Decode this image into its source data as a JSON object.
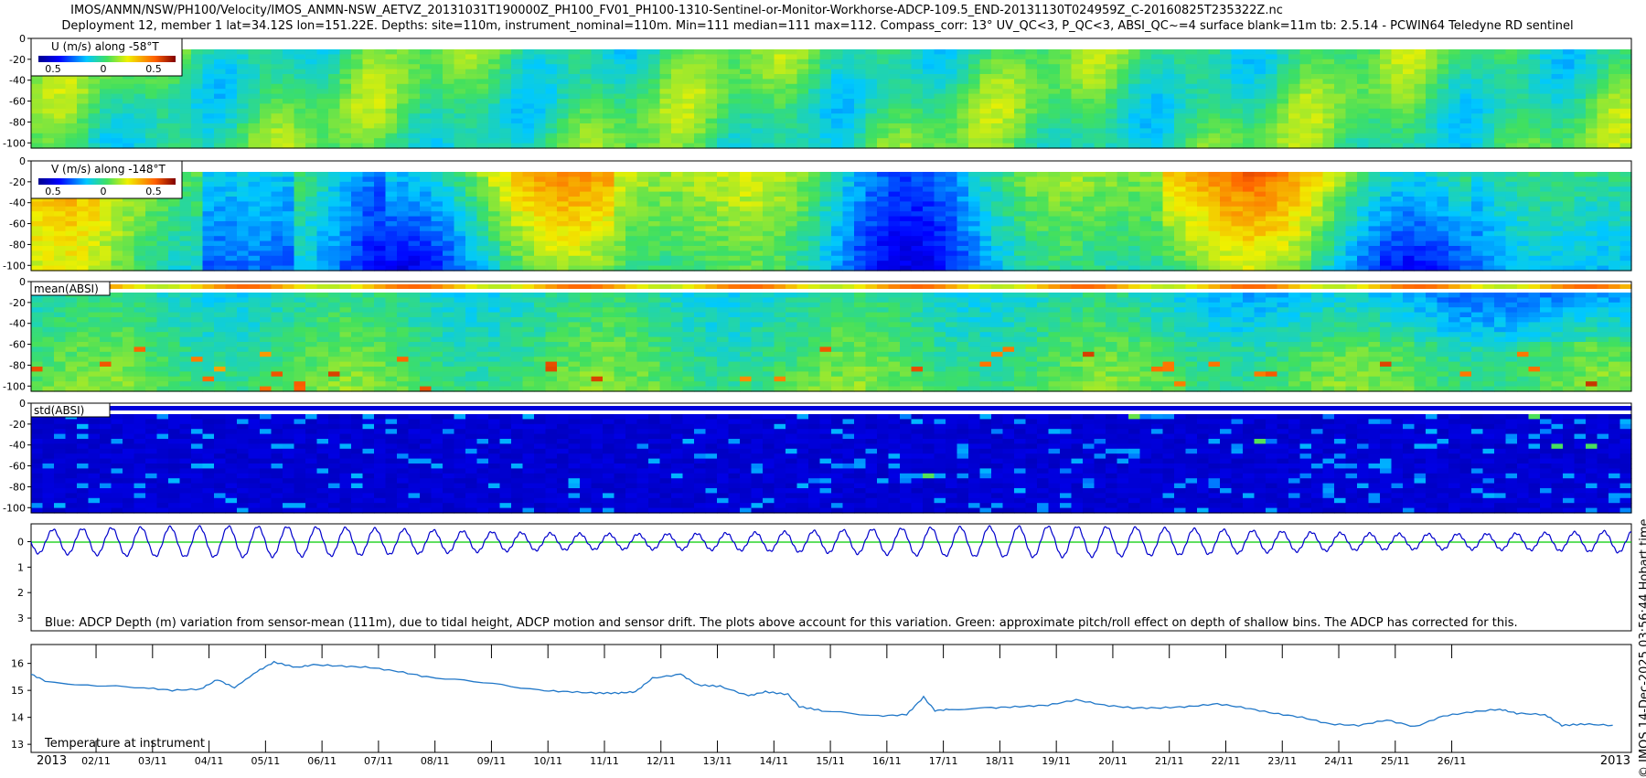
{
  "header": {
    "path": "IMOS/ANMN/NSW/PH100/Velocity/IMOS_ANMN-NSW_AETVZ_20131031T190000Z_PH100_FV01_PH100-1310-Sentinel-or-Monitor-Workhorse-ADCP-109.5_END-20131130T024959Z_C-20160825T235322Z.nc",
    "subtitle": "Deployment 12, member 1 lat=34.12S lon=151.22E. Depths: site=110m, instrument_nominal=110m. Min=111 median=111 max=112. Compass_corr: 13° UV_QC<3, P_QC<3, ABSI_QC~=4 surface blank=11m tb: 2.5.14 - PCWIN64 Teledyne RD sentinel"
  },
  "sidenote": "© IMOS 14-Dec-2025 03:56:44 Hobart time",
  "colors": {
    "grid_green": "#22c02a",
    "depth_line": "#0000cc",
    "temp_line": "#2077c8",
    "zero_line": "#00cc00"
  },
  "chart_data": [
    {
      "type": "heatmap",
      "panel": "U",
      "legend": "U (m/s) along -58°T",
      "colorbar_ticks": [
        "0.5",
        "0",
        "0.5"
      ],
      "clim": [
        -0.5,
        0.5
      ],
      "yticks": [
        "0",
        "-20",
        "-40",
        "-60",
        "-80",
        "-100"
      ],
      "ylim": [
        0,
        -105
      ],
      "description_values": {
        "dominant": 0.0
      }
    },
    {
      "type": "heatmap",
      "panel": "V",
      "legend": "V (m/s) along -148°T",
      "colorbar_ticks": [
        "0.5",
        "0",
        "0.5"
      ],
      "clim": [
        -0.5,
        0.5
      ],
      "yticks": [
        "0",
        "-20",
        "-40",
        "-60",
        "-80",
        "-100"
      ],
      "ylim": [
        0,
        -105
      ]
    },
    {
      "type": "heatmap",
      "panel": "meanABSI",
      "legend": "mean(ABSI)",
      "yticks": [
        "0",
        "-20",
        "-40",
        "-60",
        "-80",
        "-100"
      ],
      "ylim": [
        0,
        -105
      ]
    },
    {
      "type": "heatmap",
      "panel": "stdABSI",
      "legend": "std(ABSI)",
      "yticks": [
        "0",
        "-20",
        "-40",
        "-60",
        "-80",
        "-100"
      ],
      "ylim": [
        0,
        -105
      ]
    },
    {
      "type": "line",
      "panel": "depth",
      "series": [
        {
          "name": "ADCP depth variation",
          "amplitude": 0.6,
          "period_days": 0.518
        }
      ],
      "yticks": [
        "0",
        "1",
        "2",
        "3"
      ],
      "ylim": [
        3.5,
        -0.7
      ],
      "annotation": "Blue: ADCP Depth (m) variation from sensor-mean (111m), due to tidal height, ADCP motion and sensor drift. The plots above account for this variation. Green: approximate pitch/roll effect on depth of shallow bins. The ADCP has corrected for this."
    },
    {
      "type": "line",
      "panel": "temperature",
      "series": [
        {
          "name": "Temperature at instrument",
          "x": [
            0,
            0.3,
            1,
            2,
            2.5,
            3,
            3.3,
            3.6,
            4,
            4.3,
            4.7,
            5,
            5.5,
            6,
            6.5,
            7,
            8,
            9,
            9.5,
            10,
            10.4,
            10.7,
            11,
            11.5,
            11.8,
            12.2,
            12.7,
            13,
            13.4,
            13.6,
            14,
            15,
            15.5,
            15.8,
            16,
            16.3,
            17,
            17.5,
            18,
            18.5,
            19,
            19.5,
            20,
            20.5,
            21,
            21.5,
            22,
            22.5,
            23,
            23.5,
            24,
            24.5,
            25,
            25.5,
            26,
            26.3,
            26.8,
            27.1,
            27.5,
            28
          ],
          "values": [
            15.6,
            15.3,
            15.2,
            15.1,
            15.0,
            15.05,
            15.4,
            15.1,
            15.7,
            16.05,
            15.85,
            15.95,
            15.9,
            15.85,
            15.7,
            15.5,
            15.3,
            15.0,
            14.95,
            14.9,
            14.9,
            14.95,
            15.45,
            15.6,
            15.2,
            15.15,
            14.8,
            14.95,
            14.85,
            14.4,
            14.25,
            14.05,
            14.1,
            14.75,
            14.25,
            14.3,
            14.35,
            14.4,
            14.45,
            14.65,
            14.45,
            14.35,
            14.35,
            14.4,
            14.5,
            14.35,
            14.15,
            14.0,
            13.75,
            13.7,
            13.9,
            13.65,
            14.05,
            14.2,
            14.3,
            14.15,
            14.1,
            13.7,
            13.75,
            13.7
          ]
        }
      ],
      "yticks": [
        "13",
        "14",
        "15",
        "16"
      ],
      "ylim": [
        12.7,
        16.7
      ]
    }
  ],
  "xaxis": {
    "start_label": "2013",
    "end_label": "2013",
    "tick_labels": [
      "02/11",
      "03/11",
      "04/11",
      "05/11",
      "06/11",
      "07/11",
      "08/11",
      "09/11",
      "10/11",
      "11/11",
      "12/11",
      "13/11",
      "14/11",
      "15/11",
      "16/11",
      "17/11",
      "18/11",
      "19/11",
      "20/11",
      "21/11",
      "22/11",
      "23/11",
      "24/11",
      "25/11",
      "26/11"
    ]
  }
}
